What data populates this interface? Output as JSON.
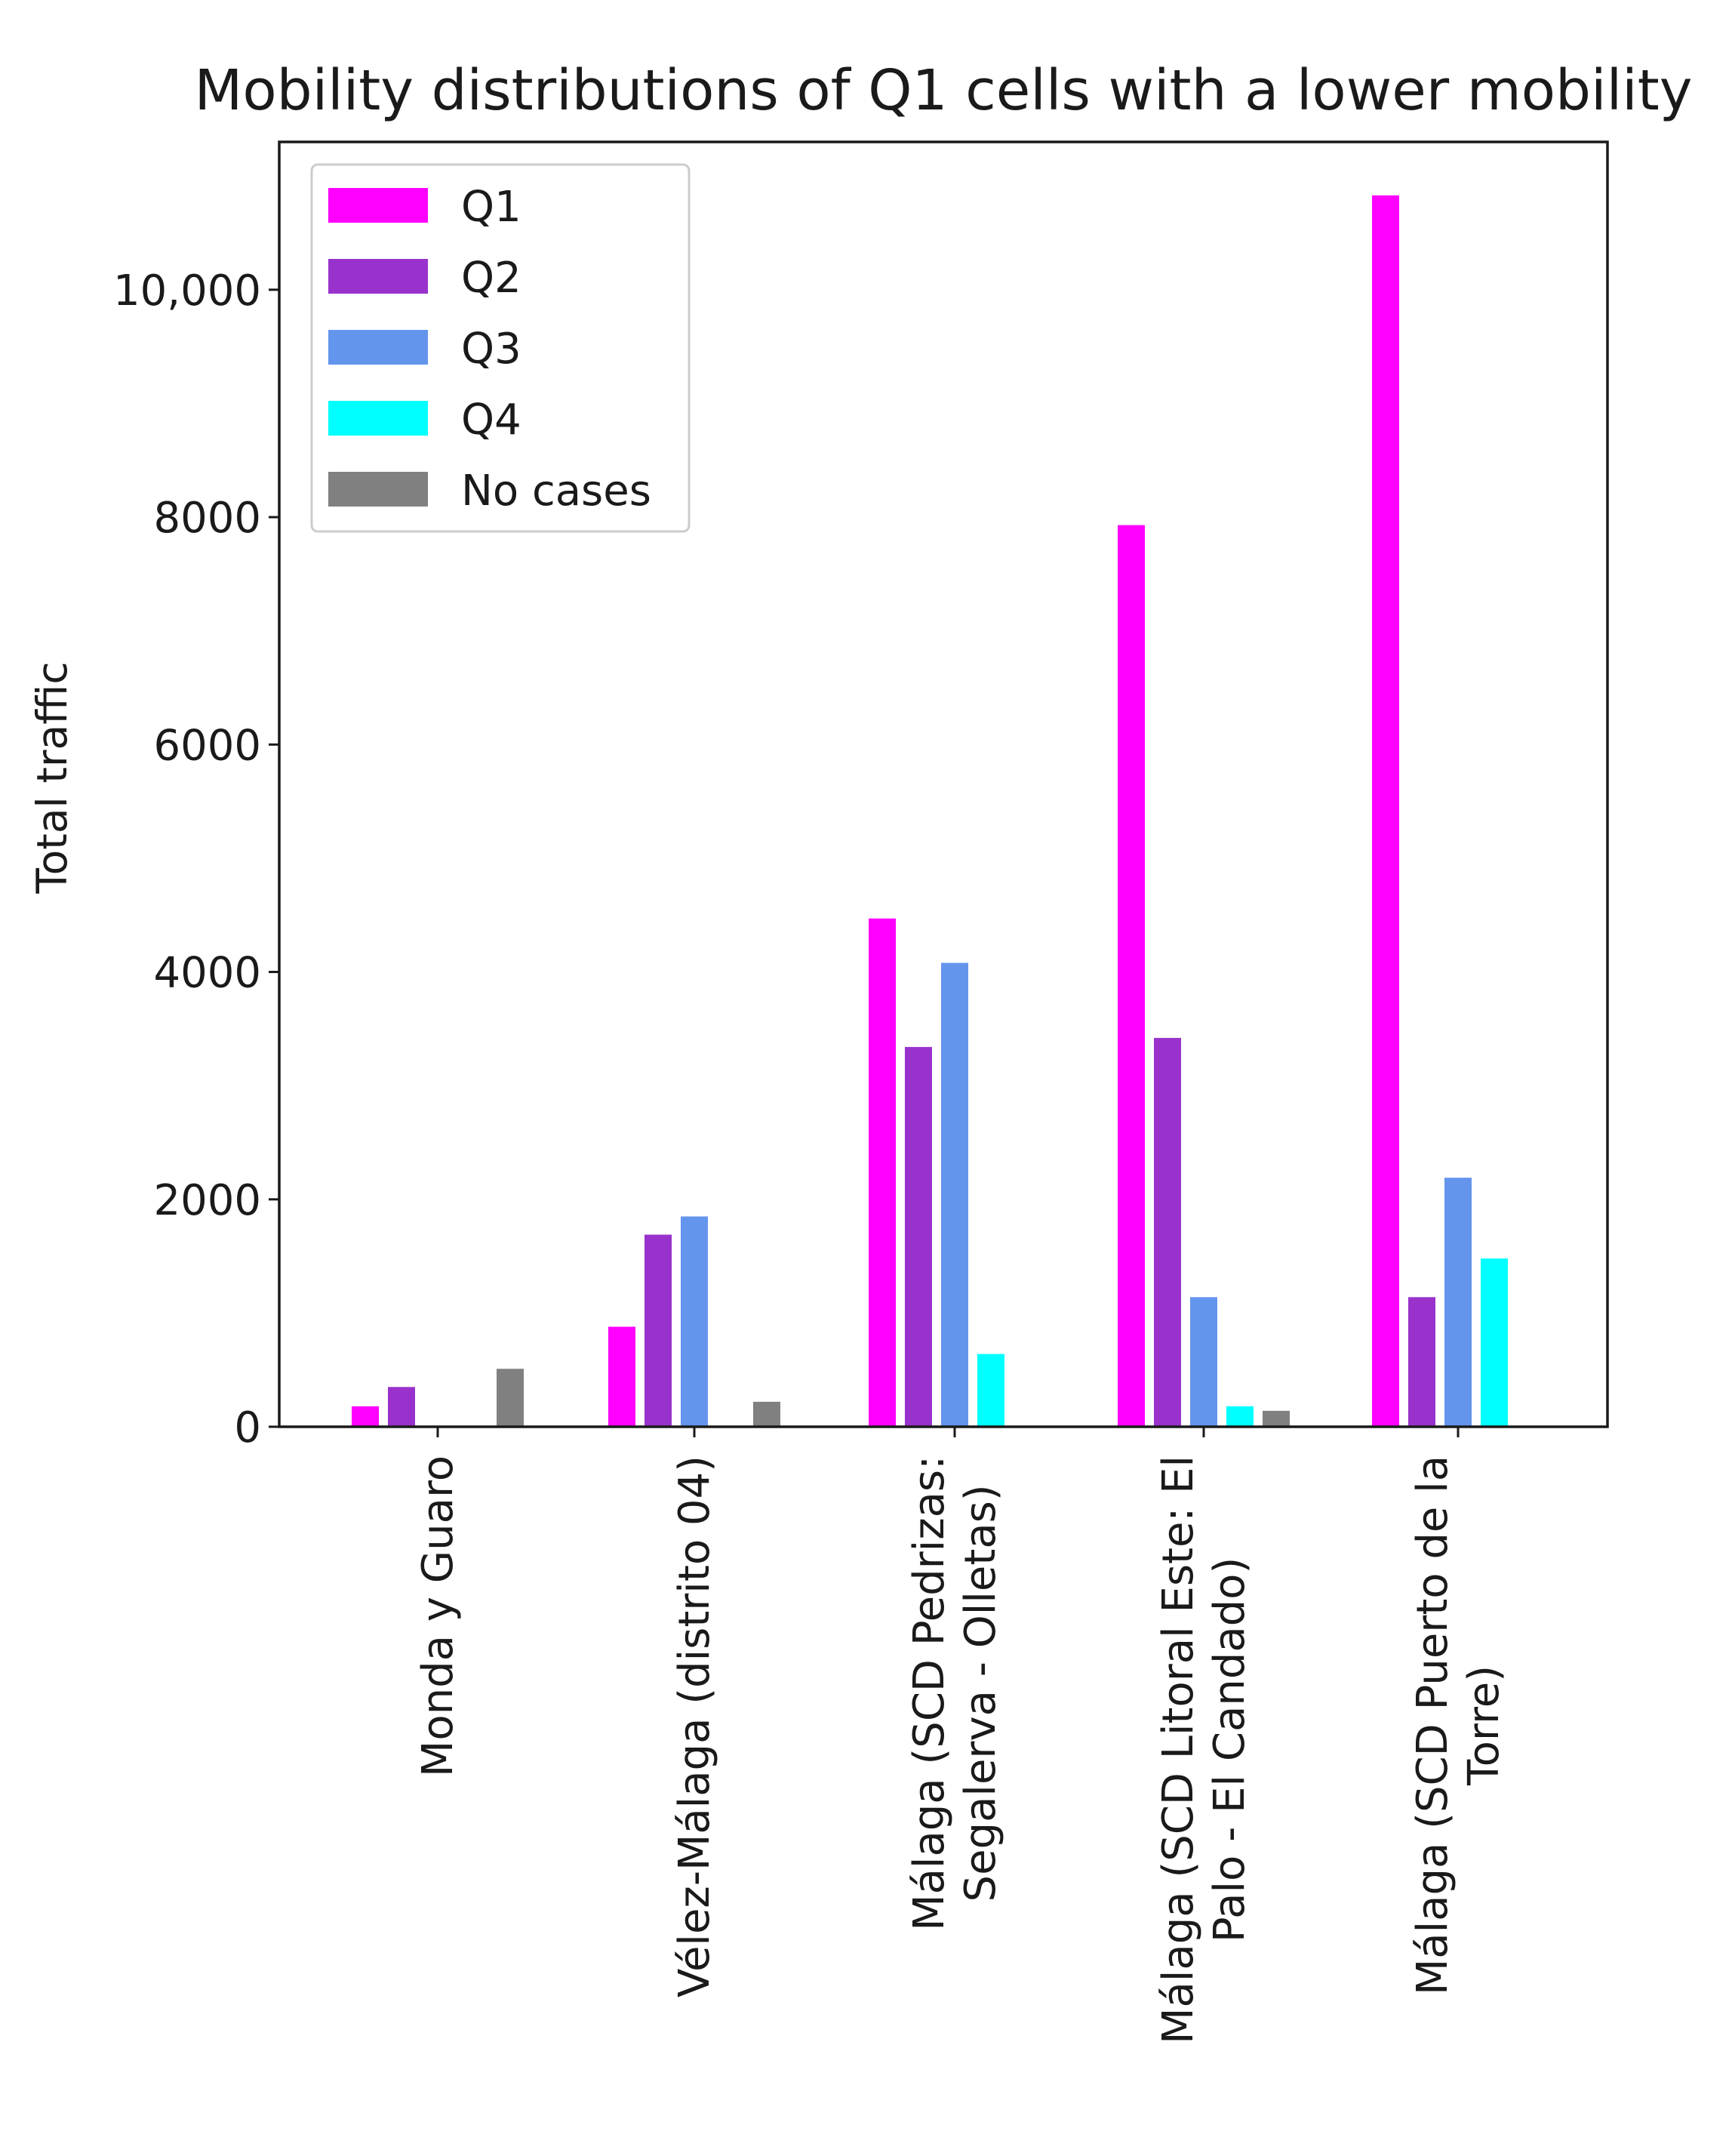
{
  "chart_data": {
    "type": "bar",
    "title": "Mobility distributions of Q1 cells with a lower mobility",
    "xlabel": "",
    "ylabel": "Total traffic",
    "ylim": [
      0,
      11300
    ],
    "yticks": [
      0,
      2000,
      4000,
      6000,
      8000,
      10000
    ],
    "ytick_labels": [
      "0",
      "2000",
      "4000",
      "6000",
      "8000",
      "10,000"
    ],
    "grid": false,
    "legend_position": "top-left",
    "categories": [
      [
        "Monda y Guaro"
      ],
      [
        "Vélez-Málaga (distrito 04)"
      ],
      [
        "Málaga (SCD Pedrizas:",
        "Segalerva - Olletas)"
      ],
      [
        "Málaga (SCD Litoral Este: El",
        "Palo - El Candado)"
      ],
      [
        "Málaga (SCD Puerto de la",
        "Torre)"
      ]
    ],
    "series": [
      {
        "name": "Q1",
        "color": "#ff00ff",
        "values": [
          180,
          880,
          4470,
          7930,
          10830
        ]
      },
      {
        "name": "Q2",
        "color": "#9932cc",
        "values": [
          350,
          1690,
          3340,
          3420,
          1140
        ]
      },
      {
        "name": "Q3",
        "color": "#6495ed",
        "values": [
          0,
          1850,
          4080,
          1140,
          2190
        ]
      },
      {
        "name": "Q4",
        "color": "#00ffff",
        "values": [
          0,
          0,
          640,
          180,
          1480
        ]
      },
      {
        "name": "No cases",
        "color": "#808080",
        "values": [
          510,
          220,
          0,
          140,
          0
        ]
      }
    ]
  }
}
